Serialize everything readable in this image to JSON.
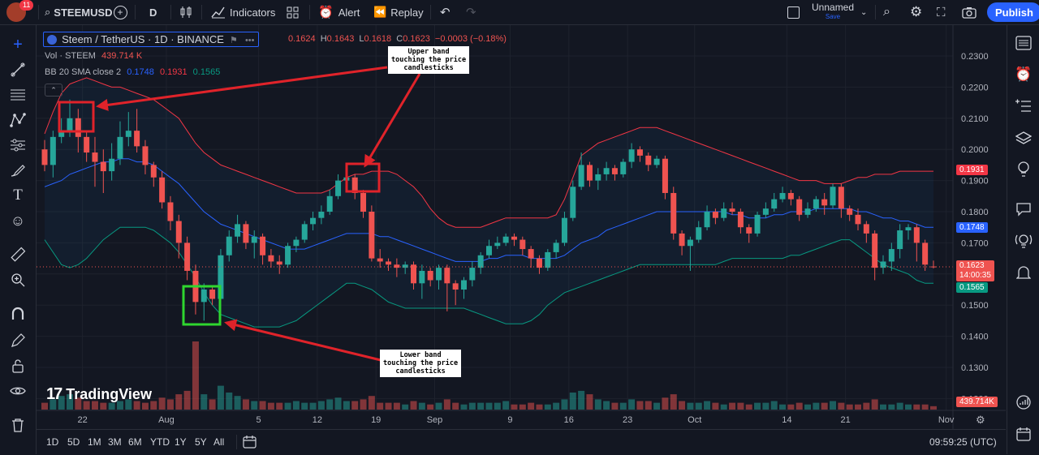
{
  "header": {
    "notification_count": "11",
    "symbol": "STEEMUSD",
    "interval": "D",
    "indicators_label": "Indicators",
    "alert_label": "Alert",
    "replay_label": "Replay",
    "layout_name": "Unnamed",
    "save_label": "Save",
    "publish_label": "Publish"
  },
  "legend": {
    "pair": "Steem / TetherUS · 1D · BINANCE",
    "o_label": "O",
    "o_value": "0.1624",
    "h_label": "H",
    "h_value": "0.1643",
    "l_label": "L",
    "l_value": "0.1618",
    "c_label": "C",
    "c_value": "0.1623",
    "change": "−0.0003 (−0.18%)",
    "vol_label": "Vol · STEEM",
    "vol_value": "439.714 K",
    "bb_label": "BB 20 SMA close 2",
    "bb_basis": "0.1748",
    "bb_upper": "0.1931",
    "bb_lower": "0.1565"
  },
  "annotations": {
    "upper": "Upper band\ntouching the price\ncandlesticks",
    "lower": "Lower band\ntouching the price\ncandlesticks"
  },
  "watermark": "TradingView",
  "price_axis": [
    "0.2300",
    "0.2200",
    "0.2100",
    "0.2000",
    "0.1900",
    "0.1800",
    "0.1700",
    "0.1600",
    "0.1500",
    "0.1400",
    "0.1300",
    "0.1200"
  ],
  "price_labels": {
    "upper": "0.1931",
    "basis": "0.1748",
    "last": "0.1623",
    "countdown": "14:00:35",
    "lower": "0.1565",
    "volume": "439.714K"
  },
  "time_axis": [
    "22",
    "Aug",
    "5",
    "12",
    "19",
    "Sep",
    "9",
    "16",
    "23",
    "Oct",
    "14",
    "21",
    "Nov"
  ],
  "ranges": [
    "1D",
    "5D",
    "1M",
    "3M",
    "6M",
    "YTD",
    "1Y",
    "5Y",
    "All"
  ],
  "clock": "09:59:25 (UTC)",
  "colors": {
    "up": "#26a69a",
    "down": "#ef5350",
    "basis": "#2962ff",
    "upper": "#f23645",
    "lower": "#089981",
    "accent": "#2962ff"
  },
  "chart_data": {
    "type": "candlestick",
    "ylim": [
      0.12,
      0.235
    ],
    "candles": [
      [
        0.2,
        0.195,
        0.203,
        0.193
      ],
      [
        0.195,
        0.204,
        0.206,
        0.191
      ],
      [
        0.204,
        0.206,
        0.21,
        0.202
      ],
      [
        0.206,
        0.21,
        0.216,
        0.204
      ],
      [
        0.21,
        0.204,
        0.213,
        0.199
      ],
      [
        0.204,
        0.199,
        0.206,
        0.196
      ],
      [
        0.199,
        0.196,
        0.204,
        0.188
      ],
      [
        0.196,
        0.193,
        0.2,
        0.186
      ],
      [
        0.193,
        0.197,
        0.202,
        0.19
      ],
      [
        0.197,
        0.204,
        0.209,
        0.195
      ],
      [
        0.204,
        0.206,
        0.212,
        0.201
      ],
      [
        0.206,
        0.201,
        0.213,
        0.199
      ],
      [
        0.201,
        0.195,
        0.203,
        0.192
      ],
      [
        0.195,
        0.191,
        0.196,
        0.188
      ],
      [
        0.191,
        0.183,
        0.193,
        0.181
      ],
      [
        0.183,
        0.177,
        0.185,
        0.174
      ],
      [
        0.177,
        0.17,
        0.179,
        0.165
      ],
      [
        0.17,
        0.161,
        0.172,
        0.158
      ],
      [
        0.161,
        0.151,
        0.163,
        0.147
      ],
      [
        0.151,
        0.155,
        0.157,
        0.145
      ],
      [
        0.155,
        0.152,
        0.156,
        0.15
      ],
      [
        0.152,
        0.166,
        0.168,
        0.151
      ],
      [
        0.166,
        0.172,
        0.174,
        0.164
      ],
      [
        0.172,
        0.176,
        0.179,
        0.17
      ],
      [
        0.176,
        0.17,
        0.177,
        0.168
      ],
      [
        0.17,
        0.172,
        0.174,
        0.165
      ],
      [
        0.172,
        0.166,
        0.173,
        0.163
      ],
      [
        0.166,
        0.164,
        0.168,
        0.162
      ],
      [
        0.164,
        0.163,
        0.166,
        0.16
      ],
      [
        0.163,
        0.169,
        0.17,
        0.162
      ],
      [
        0.169,
        0.171,
        0.172,
        0.167
      ],
      [
        0.171,
        0.176,
        0.177,
        0.17
      ],
      [
        0.176,
        0.178,
        0.18,
        0.174
      ],
      [
        0.178,
        0.18,
        0.182,
        0.176
      ],
      [
        0.18,
        0.185,
        0.187,
        0.179
      ],
      [
        0.185,
        0.19,
        0.192,
        0.184
      ],
      [
        0.19,
        0.191,
        0.192,
        0.188
      ],
      [
        0.191,
        0.186,
        0.192,
        0.184
      ],
      [
        0.186,
        0.18,
        0.187,
        0.178
      ],
      [
        0.18,
        0.165,
        0.182,
        0.164
      ],
      [
        0.165,
        0.164,
        0.168,
        0.162
      ],
      [
        0.164,
        0.163,
        0.165,
        0.161
      ],
      [
        0.163,
        0.162,
        0.165,
        0.159
      ],
      [
        0.162,
        0.163,
        0.164,
        0.16
      ],
      [
        0.163,
        0.157,
        0.164,
        0.155
      ],
      [
        0.157,
        0.161,
        0.163,
        0.152
      ],
      [
        0.161,
        0.158,
        0.162,
        0.156
      ],
      [
        0.158,
        0.162,
        0.163,
        0.155
      ],
      [
        0.162,
        0.157,
        0.163,
        0.148
      ],
      [
        0.157,
        0.155,
        0.158,
        0.15
      ],
      [
        0.155,
        0.158,
        0.159,
        0.152
      ],
      [
        0.158,
        0.162,
        0.164,
        0.156
      ],
      [
        0.162,
        0.166,
        0.167,
        0.16
      ],
      [
        0.166,
        0.169,
        0.171,
        0.165
      ],
      [
        0.169,
        0.17,
        0.172,
        0.168
      ],
      [
        0.17,
        0.172,
        0.173,
        0.169
      ],
      [
        0.172,
        0.171,
        0.173,
        0.169
      ],
      [
        0.171,
        0.168,
        0.172,
        0.166
      ],
      [
        0.168,
        0.165,
        0.169,
        0.162
      ],
      [
        0.165,
        0.162,
        0.166,
        0.16
      ],
      [
        0.162,
        0.167,
        0.168,
        0.161
      ],
      [
        0.167,
        0.17,
        0.171,
        0.165
      ],
      [
        0.17,
        0.178,
        0.18,
        0.169
      ],
      [
        0.178,
        0.188,
        0.19,
        0.177
      ],
      [
        0.188,
        0.195,
        0.199,
        0.187
      ],
      [
        0.195,
        0.19,
        0.196,
        0.188
      ],
      [
        0.19,
        0.192,
        0.194,
        0.187
      ],
      [
        0.192,
        0.194,
        0.196,
        0.19
      ],
      [
        0.194,
        0.192,
        0.195,
        0.19
      ],
      [
        0.192,
        0.196,
        0.197,
        0.191
      ],
      [
        0.196,
        0.2,
        0.202,
        0.194
      ],
      [
        0.2,
        0.198,
        0.201,
        0.196
      ],
      [
        0.198,
        0.195,
        0.199,
        0.193
      ],
      [
        0.195,
        0.197,
        0.198,
        0.194
      ],
      [
        0.197,
        0.186,
        0.198,
        0.184
      ],
      [
        0.186,
        0.173,
        0.188,
        0.171
      ],
      [
        0.173,
        0.169,
        0.174,
        0.166
      ],
      [
        0.169,
        0.171,
        0.172,
        0.161
      ],
      [
        0.171,
        0.175,
        0.177,
        0.17
      ],
      [
        0.175,
        0.18,
        0.182,
        0.174
      ],
      [
        0.18,
        0.178,
        0.181,
        0.176
      ],
      [
        0.178,
        0.181,
        0.183,
        0.177
      ],
      [
        0.181,
        0.18,
        0.183,
        0.179
      ],
      [
        0.18,
        0.175,
        0.181,
        0.173
      ],
      [
        0.175,
        0.173,
        0.176,
        0.17
      ],
      [
        0.173,
        0.179,
        0.18,
        0.172
      ],
      [
        0.179,
        0.181,
        0.183,
        0.178
      ],
      [
        0.181,
        0.184,
        0.186,
        0.18
      ],
      [
        0.184,
        0.186,
        0.188,
        0.183
      ],
      [
        0.186,
        0.184,
        0.187,
        0.182
      ],
      [
        0.184,
        0.179,
        0.185,
        0.177
      ],
      [
        0.179,
        0.181,
        0.183,
        0.178
      ],
      [
        0.181,
        0.184,
        0.185,
        0.18
      ],
      [
        0.184,
        0.182,
        0.186,
        0.179
      ],
      [
        0.182,
        0.188,
        0.189,
        0.181
      ],
      [
        0.188,
        0.181,
        0.189,
        0.178
      ],
      [
        0.181,
        0.179,
        0.182,
        0.177
      ],
      [
        0.179,
        0.176,
        0.181,
        0.174
      ],
      [
        0.176,
        0.173,
        0.177,
        0.17
      ],
      [
        0.173,
        0.162,
        0.174,
        0.158
      ],
      [
        0.162,
        0.164,
        0.166,
        0.16
      ],
      [
        0.164,
        0.168,
        0.17,
        0.161
      ],
      [
        0.168,
        0.174,
        0.176,
        0.165
      ],
      [
        0.174,
        0.175,
        0.176,
        0.171
      ],
      [
        0.175,
        0.17,
        0.176,
        0.164
      ],
      [
        0.17,
        0.163,
        0.171,
        0.161
      ],
      [
        0.1624,
        0.1623,
        0.1643,
        0.1618
      ]
    ],
    "volume": [
      4,
      6,
      8,
      9,
      7,
      5,
      5,
      4,
      4,
      5,
      6,
      5,
      4,
      5,
      7,
      6,
      9,
      11,
      40,
      9,
      6,
      14,
      10,
      8,
      6,
      5,
      5,
      4,
      4,
      4,
      5,
      4,
      4,
      5,
      6,
      7,
      5,
      5,
      6,
      8,
      4,
      4,
      4,
      3,
      5,
      4,
      3,
      4,
      6,
      4,
      3,
      4,
      4,
      4,
      4,
      5,
      3,
      3,
      4,
      3,
      3,
      4,
      6,
      10,
      11,
      9,
      6,
      5,
      4,
      4,
      6,
      5,
      5,
      4,
      7,
      9,
      5,
      4,
      4,
      5,
      4,
      3,
      4,
      4,
      3,
      4,
      4,
      5,
      3,
      3,
      4,
      3,
      4,
      4,
      5,
      4,
      3,
      3,
      4,
      6,
      3,
      3,
      4,
      3,
      3,
      3,
      2
    ],
    "bb_upper": [
      0.205,
      0.212,
      0.218,
      0.221,
      0.222,
      0.223,
      0.222,
      0.221,
      0.22,
      0.22,
      0.219,
      0.218,
      0.217,
      0.216,
      0.214,
      0.212,
      0.21,
      0.206,
      0.202,
      0.199,
      0.197,
      0.195,
      0.194,
      0.193,
      0.192,
      0.191,
      0.19,
      0.189,
      0.188,
      0.187,
      0.186,
      0.186,
      0.186,
      0.186,
      0.187,
      0.189,
      0.191,
      0.192,
      0.192,
      0.193,
      0.193,
      0.193,
      0.192,
      0.19,
      0.188,
      0.185,
      0.181,
      0.178,
      0.176,
      0.175,
      0.175,
      0.175,
      0.175,
      0.176,
      0.177,
      0.178,
      0.178,
      0.178,
      0.178,
      0.178,
      0.178,
      0.179,
      0.184,
      0.191,
      0.198,
      0.2,
      0.202,
      0.203,
      0.204,
      0.205,
      0.206,
      0.207,
      0.207,
      0.207,
      0.206,
      0.205,
      0.204,
      0.203,
      0.202,
      0.201,
      0.2,
      0.199,
      0.198,
      0.197,
      0.196,
      0.195,
      0.194,
      0.193,
      0.192,
      0.191,
      0.19,
      0.19,
      0.19,
      0.189,
      0.189,
      0.189,
      0.19,
      0.191,
      0.191,
      0.192,
      0.192,
      0.192,
      0.193,
      0.193,
      0.193,
      0.193,
      0.193
    ],
    "bb_basis": [
      0.188,
      0.189,
      0.19,
      0.192,
      0.193,
      0.194,
      0.195,
      0.196,
      0.196,
      0.197,
      0.197,
      0.196,
      0.196,
      0.195,
      0.193,
      0.191,
      0.189,
      0.186,
      0.183,
      0.18,
      0.178,
      0.176,
      0.175,
      0.174,
      0.173,
      0.172,
      0.171,
      0.17,
      0.169,
      0.168,
      0.168,
      0.168,
      0.169,
      0.17,
      0.171,
      0.172,
      0.173,
      0.173,
      0.173,
      0.173,
      0.172,
      0.172,
      0.171,
      0.17,
      0.169,
      0.168,
      0.167,
      0.166,
      0.165,
      0.164,
      0.164,
      0.164,
      0.164,
      0.165,
      0.165,
      0.166,
      0.166,
      0.166,
      0.165,
      0.165,
      0.165,
      0.165,
      0.166,
      0.168,
      0.17,
      0.171,
      0.172,
      0.174,
      0.175,
      0.176,
      0.177,
      0.178,
      0.179,
      0.18,
      0.18,
      0.18,
      0.18,
      0.18,
      0.18,
      0.18,
      0.18,
      0.18,
      0.179,
      0.179,
      0.178,
      0.178,
      0.178,
      0.179,
      0.179,
      0.18,
      0.18,
      0.18,
      0.181,
      0.181,
      0.181,
      0.181,
      0.181,
      0.18,
      0.18,
      0.179,
      0.178,
      0.178,
      0.177,
      0.177,
      0.176,
      0.175,
      0.175
    ],
    "bb_lower": [
      0.171,
      0.167,
      0.163,
      0.162,
      0.163,
      0.165,
      0.168,
      0.171,
      0.173,
      0.175,
      0.175,
      0.175,
      0.175,
      0.174,
      0.172,
      0.17,
      0.167,
      0.163,
      0.159,
      0.154,
      0.15,
      0.147,
      0.146,
      0.145,
      0.144,
      0.143,
      0.143,
      0.143,
      0.143,
      0.144,
      0.145,
      0.147,
      0.149,
      0.151,
      0.153,
      0.155,
      0.157,
      0.157,
      0.156,
      0.155,
      0.153,
      0.151,
      0.15,
      0.149,
      0.149,
      0.149,
      0.149,
      0.149,
      0.149,
      0.149,
      0.149,
      0.148,
      0.147,
      0.146,
      0.145,
      0.144,
      0.144,
      0.144,
      0.145,
      0.147,
      0.15,
      0.152,
      0.154,
      0.155,
      0.156,
      0.157,
      0.158,
      0.159,
      0.16,
      0.161,
      0.162,
      0.163,
      0.163,
      0.163,
      0.163,
      0.163,
      0.163,
      0.163,
      0.163,
      0.163,
      0.163,
      0.164,
      0.165,
      0.165,
      0.165,
      0.165,
      0.165,
      0.165,
      0.165,
      0.166,
      0.166,
      0.167,
      0.168,
      0.169,
      0.17,
      0.171,
      0.171,
      0.169,
      0.167,
      0.165,
      0.163,
      0.162,
      0.161,
      0.16,
      0.158,
      0.157,
      0.157
    ]
  }
}
